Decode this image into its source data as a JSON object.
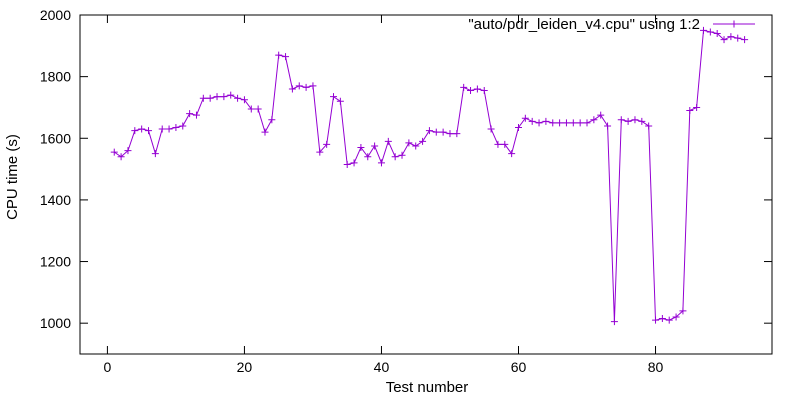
{
  "chart_data": {
    "type": "line",
    "title": "",
    "xlabel": "Test number",
    "ylabel": "CPU time (s)",
    "xlim": [
      -4,
      97
    ],
    "ylim": [
      900,
      2000
    ],
    "x_ticks": [
      0,
      20,
      40,
      60,
      80
    ],
    "y_ticks": [
      1000,
      1200,
      1400,
      1600,
      1800,
      2000
    ],
    "grid": false,
    "legend_position": "top-right",
    "series": [
      {
        "name": "\"auto/pdr_leiden_v4.cpu\" using 1:2",
        "color": "#9400d3",
        "marker": "plus",
        "x": [
          1,
          2,
          3,
          4,
          5,
          6,
          7,
          8,
          9,
          10,
          11,
          12,
          13,
          14,
          15,
          16,
          17,
          18,
          19,
          20,
          21,
          22,
          23,
          24,
          25,
          26,
          27,
          28,
          29,
          30,
          31,
          32,
          33,
          34,
          35,
          36,
          37,
          38,
          39,
          40,
          41,
          42,
          43,
          44,
          45,
          46,
          47,
          48,
          49,
          50,
          51,
          52,
          53,
          54,
          55,
          56,
          57,
          58,
          59,
          60,
          61,
          62,
          63,
          64,
          65,
          66,
          67,
          68,
          69,
          70,
          71,
          72,
          73,
          74,
          75,
          76,
          77,
          78,
          79,
          80,
          81,
          82,
          83,
          84,
          85,
          86,
          87,
          88,
          89,
          90,
          91,
          92,
          93
        ],
        "y": [
          1555,
          1540,
          1560,
          1625,
          1630,
          1625,
          1550,
          1630,
          1630,
          1635,
          1640,
          1680,
          1675,
          1730,
          1730,
          1735,
          1735,
          1740,
          1730,
          1725,
          1695,
          1695,
          1620,
          1660,
          1870,
          1865,
          1760,
          1770,
          1765,
          1770,
          1555,
          1580,
          1735,
          1720,
          1515,
          1520,
          1570,
          1540,
          1575,
          1520,
          1590,
          1540,
          1545,
          1585,
          1575,
          1590,
          1625,
          1620,
          1620,
          1615,
          1615,
          1765,
          1755,
          1760,
          1755,
          1630,
          1580,
          1580,
          1550,
          1635,
          1665,
          1655,
          1650,
          1655,
          1650,
          1650,
          1650,
          1650,
          1650,
          1650,
          1660,
          1675,
          1640,
          1005,
          1660,
          1655,
          1660,
          1655,
          1640,
          1010,
          1015,
          1010,
          1020,
          1040,
          1690,
          1700,
          1950,
          1945,
          1940,
          1920,
          1930,
          1925,
          1920
        ]
      }
    ]
  }
}
